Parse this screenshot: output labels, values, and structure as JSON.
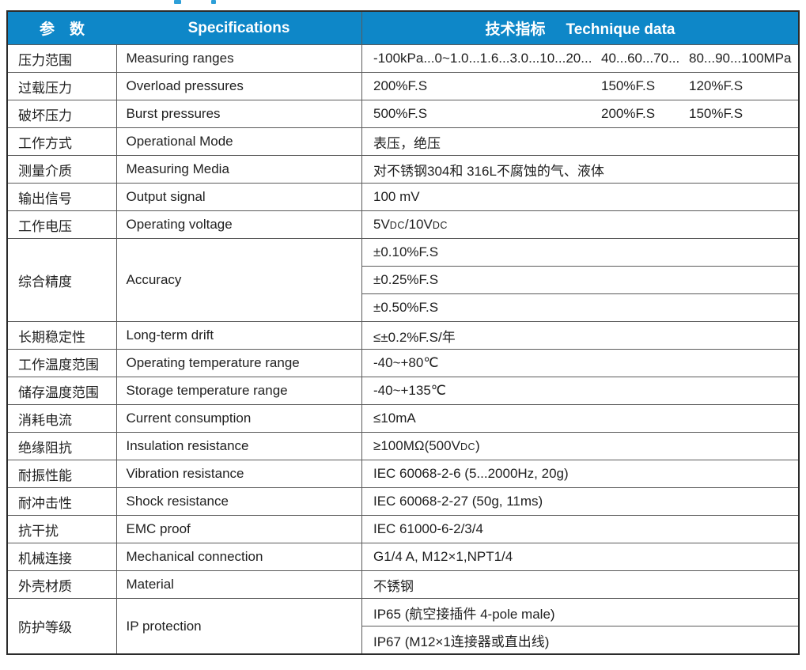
{
  "colors": {
    "header_bg": "#0e87c8",
    "header_text": "#ffffff",
    "grid_line": "#5a5a5a",
    "outer_border": "#2b2b2b",
    "body_text": "#1f1f1f",
    "fragment_blue": "#2d9fd8"
  },
  "table": {
    "header": {
      "param_label": "参　数",
      "spec_label": "Specifications",
      "tech_label_zh": "技术指标",
      "tech_label_en": "Technique data"
    },
    "rows": [
      {
        "param": "压力范围",
        "spec": "Measuring ranges",
        "values": [
          "-100kPa...0~1.0...1.6...3.0...10...20...",
          "40...60...70...",
          "80...90...100MPa"
        ]
      },
      {
        "param": "过载压力",
        "spec": "Overload pressures",
        "values": [
          "200%F.S",
          "150%F.S",
          "120%F.S"
        ]
      },
      {
        "param": "破坏压力",
        "spec": "Burst pressures",
        "values": [
          "500%F.S",
          "200%F.S",
          "150%F.S"
        ]
      },
      {
        "param": "工作方式",
        "spec": "Operational Mode",
        "value": "表压，绝压"
      },
      {
        "param": "测量介质",
        "spec": "Measuring Media",
        "value": "对不锈钢304和 316L不腐蚀的气、液体"
      },
      {
        "param": "输出信号",
        "spec": "Output signal",
        "value": "100 mV"
      },
      {
        "param": "工作电压",
        "spec": "Operating voltage",
        "value_rich": [
          {
            "t": "5V"
          },
          {
            "t": "DC",
            "small": true
          },
          {
            "t": "/10V"
          },
          {
            "t": "DC",
            "small": true
          }
        ]
      },
      {
        "param": "综合精度",
        "spec": "Accuracy",
        "rowspan": 3,
        "value": "±0.10%F.S"
      },
      {
        "value": "±0.25%F.S"
      },
      {
        "value": "±0.50%F.S"
      },
      {
        "param": "长期稳定性",
        "spec": "Long-term drift",
        "value": "≤±0.2%F.S/年"
      },
      {
        "param": "工作温度范围",
        "spec": "Operating temperature range",
        "value": "-40~+80℃"
      },
      {
        "param": "储存温度范围",
        "spec": "Storage temperature range",
        "value": "-40~+135℃"
      },
      {
        "param": "消耗电流",
        "spec": "Current consumption",
        "value": "≤10mA"
      },
      {
        "param": "绝缘阻抗",
        "spec": "Insulation resistance",
        "value_rich": [
          {
            "t": "≥100MΩ(500V"
          },
          {
            "t": "DC",
            "small": true
          },
          {
            "t": ")"
          }
        ]
      },
      {
        "param": "耐振性能",
        "spec": "Vibration resistance",
        "value": "IEC 60068-2-6 (5...2000Hz, 20g)"
      },
      {
        "param": "耐冲击性",
        "spec": "Shock resistance",
        "value": "IEC 60068-2-27 (50g, 11ms)"
      },
      {
        "param": "抗干扰",
        "spec": "EMC proof",
        "value": "IEC 61000-6-2/3/4"
      },
      {
        "param": "机械连接",
        "spec": "Mechanical connection",
        "value": "G1/4 A, M12×1,NPT1/4"
      },
      {
        "param": "外壳材质",
        "spec": "Material",
        "value": "不锈钢"
      },
      {
        "param": "防护等级",
        "spec": "IP protection",
        "rowspan": 2,
        "value": "IP65 (航空接插件 4-pole male)"
      },
      {
        "value": "IP67 (M12×1连接器或直出线)"
      }
    ]
  }
}
